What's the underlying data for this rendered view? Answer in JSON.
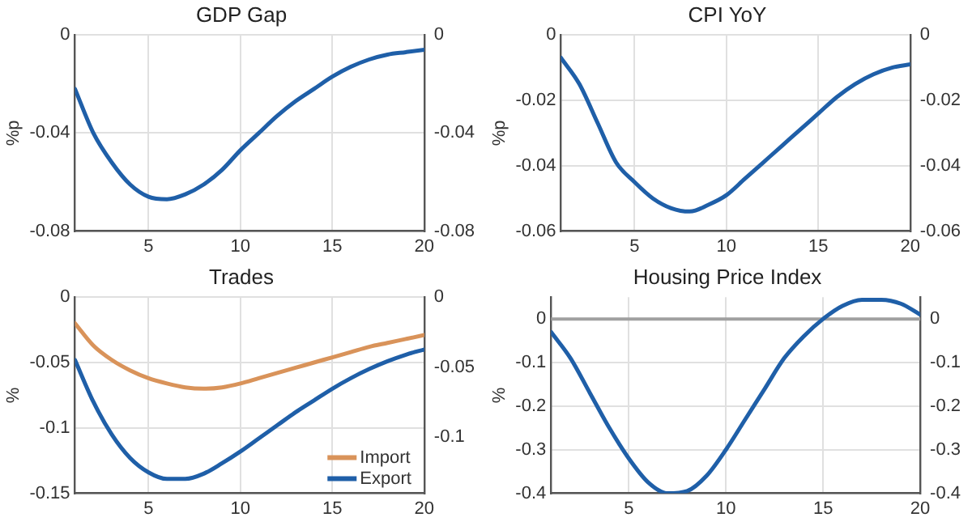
{
  "chart_data": [
    {
      "type": "line",
      "title": "GDP Gap",
      "ylabel": "%p",
      "x": [
        1,
        2,
        3,
        4,
        5,
        6,
        7,
        8,
        9,
        10,
        11,
        12,
        13,
        14,
        15,
        16,
        17,
        18,
        19,
        20
      ],
      "xlim": [
        1,
        20
      ],
      "xticks": [
        5,
        10,
        15,
        20
      ],
      "ylim": [
        -0.08,
        0
      ],
      "yticks": [
        -0.08,
        -0.04,
        0
      ],
      "y2lim": [
        -0.08,
        0
      ],
      "y2ticks": [
        -0.08,
        -0.04,
        0
      ],
      "grid": true,
      "legend": false,
      "series": [
        {
          "color": "#1f5fa8",
          "values": [
            -0.022,
            -0.04,
            -0.052,
            -0.061,
            -0.066,
            -0.067,
            -0.065,
            -0.061,
            -0.055,
            -0.047,
            -0.04,
            -0.033,
            -0.027,
            -0.022,
            -0.017,
            -0.013,
            -0.01,
            -0.008,
            -0.007,
            -0.006
          ]
        }
      ]
    },
    {
      "type": "line",
      "title": "CPI YoY",
      "ylabel": "%p",
      "x": [
        1,
        2,
        3,
        4,
        5,
        6,
        7,
        8,
        9,
        10,
        11,
        12,
        13,
        14,
        15,
        16,
        17,
        18,
        19,
        20
      ],
      "xlim": [
        1,
        20
      ],
      "xticks": [
        5,
        10,
        15,
        20
      ],
      "ylim": [
        -0.06,
        0
      ],
      "yticks": [
        -0.06,
        -0.04,
        -0.02,
        0
      ],
      "y2lim": [
        -0.06,
        0
      ],
      "y2ticks": [
        -0.06,
        -0.04,
        -0.02,
        0
      ],
      "grid": true,
      "legend": false,
      "series": [
        {
          "color": "#1f5fa8",
          "values": [
            -0.007,
            -0.015,
            -0.027,
            -0.039,
            -0.045,
            -0.05,
            -0.053,
            -0.054,
            -0.052,
            -0.049,
            -0.044,
            -0.039,
            -0.034,
            -0.029,
            -0.024,
            -0.019,
            -0.015,
            -0.012,
            -0.01,
            -0.009
          ]
        }
      ]
    },
    {
      "type": "line",
      "title": "Trades",
      "ylabel": "%",
      "x": [
        1,
        2,
        3,
        4,
        5,
        6,
        7,
        8,
        9,
        10,
        11,
        12,
        13,
        14,
        15,
        16,
        17,
        18,
        19,
        20
      ],
      "xlim": [
        1,
        20
      ],
      "xticks": [
        5,
        10,
        15,
        20
      ],
      "ylim": [
        -0.15,
        0
      ],
      "yticks": [
        -0.15,
        -0.1,
        -0.05,
        0
      ],
      "y2lim": [
        -0.14,
        0
      ],
      "y2ticks": [
        -0.1,
        -0.05,
        0
      ],
      "grid": true,
      "legend": "bottom right",
      "series": [
        {
          "name": "Import",
          "color": "#d9935a",
          "values": [
            -0.02,
            -0.037,
            -0.048,
            -0.056,
            -0.062,
            -0.066,
            -0.069,
            -0.07,
            -0.069,
            -0.066,
            -0.062,
            -0.058,
            -0.054,
            -0.05,
            -0.046,
            -0.042,
            -0.038,
            -0.035,
            -0.032,
            -0.029
          ]
        },
        {
          "name": "Export",
          "color": "#1f5fa8",
          "values": [
            -0.048,
            -0.08,
            -0.105,
            -0.123,
            -0.134,
            -0.139,
            -0.139,
            -0.135,
            -0.127,
            -0.118,
            -0.108,
            -0.098,
            -0.088,
            -0.079,
            -0.07,
            -0.062,
            -0.055,
            -0.049,
            -0.044,
            -0.04
          ]
        }
      ]
    },
    {
      "type": "line",
      "title": "Housing Price Index",
      "ylabel": "%",
      "x": [
        1,
        2,
        3,
        4,
        5,
        6,
        7,
        8,
        9,
        10,
        11,
        12,
        13,
        14,
        15,
        16,
        17,
        18,
        19,
        20
      ],
      "xlim": [
        1,
        20
      ],
      "xticks": [
        5,
        10,
        15,
        20
      ],
      "ylim": [
        -0.4,
        0.05
      ],
      "yticks": [
        -0.4,
        -0.3,
        -0.2,
        -0.1,
        0
      ],
      "y2lim": [
        -0.4,
        0.05
      ],
      "y2ticks": [
        -0.4,
        -0.3,
        -0.2,
        -0.1,
        0
      ],
      "grid": true,
      "legend": false,
      "ref_lines": [
        {
          "axis": "y",
          "value": 0,
          "color": "#a0a0a0"
        }
      ],
      "series": [
        {
          "color": "#1f5fa8",
          "values": [
            -0.03,
            -0.09,
            -0.17,
            -0.25,
            -0.32,
            -0.375,
            -0.4,
            -0.395,
            -0.36,
            -0.3,
            -0.23,
            -0.16,
            -0.09,
            -0.04,
            0,
            0.03,
            0.044,
            0.044,
            0.035,
            0.01
          ]
        }
      ]
    }
  ]
}
